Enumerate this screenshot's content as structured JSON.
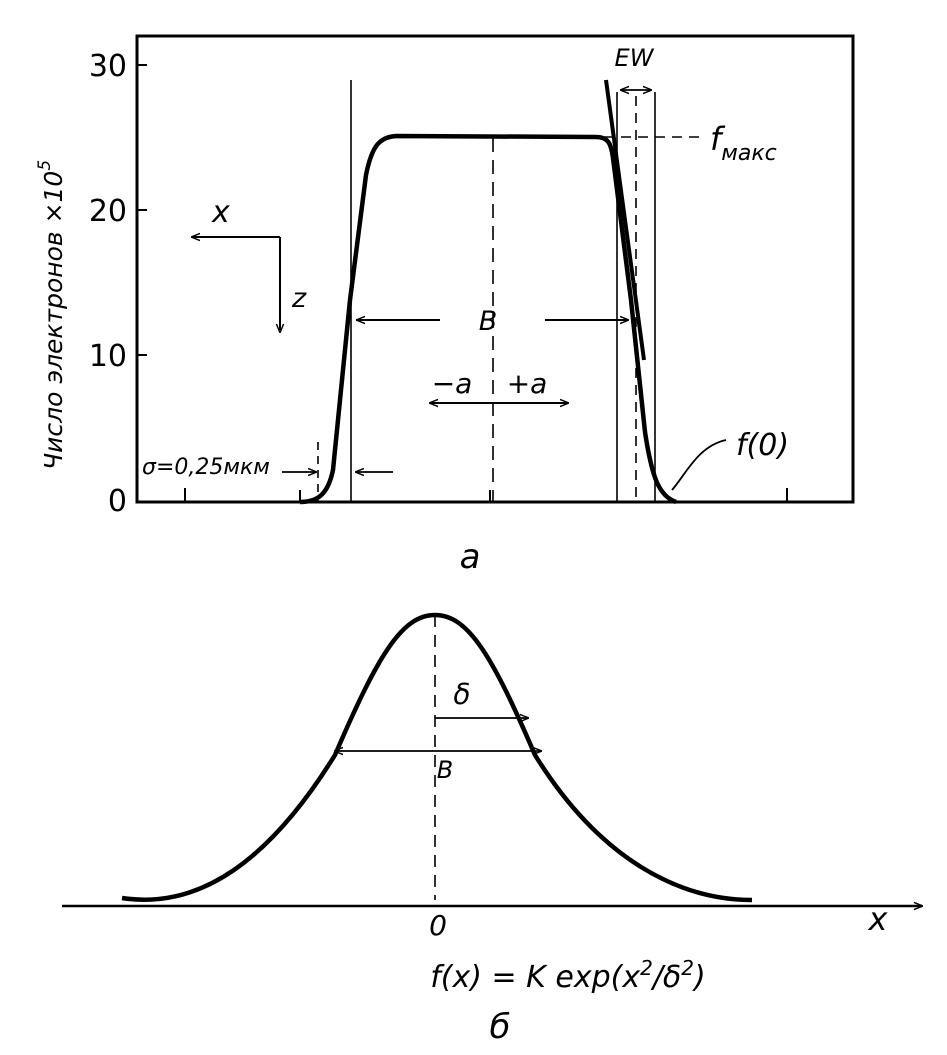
{
  "panel_a": {
    "caption": "a",
    "y_axis_label": "Число электронов ×10",
    "y_axis_exponent": "5",
    "y_ticks": [
      "0",
      "10",
      "20",
      "30"
    ],
    "y_tick_values": [
      0,
      10,
      20,
      30
    ],
    "y_range": [
      0,
      30
    ],
    "plateau_value": 25,
    "axis_x": "x",
    "axis_z": "z",
    "label_B": "B",
    "label_minus_a": "−a",
    "label_plus_a": "+a",
    "sigma_label": "σ=0,25мкм",
    "ew_label": "EW",
    "fmax_label": "f",
    "fmax_sub": "макс",
    "f0_label": "f(0)"
  },
  "panel_b": {
    "caption": "б",
    "label_delta": "δ",
    "label_B": "B",
    "zero_label": "0",
    "x_label": "x",
    "formula_main": "f(x) = K exp(x",
    "formula_sup1": "2",
    "formula_mid": "/δ",
    "formula_sup2": "2",
    "formula_end": ")"
  }
}
